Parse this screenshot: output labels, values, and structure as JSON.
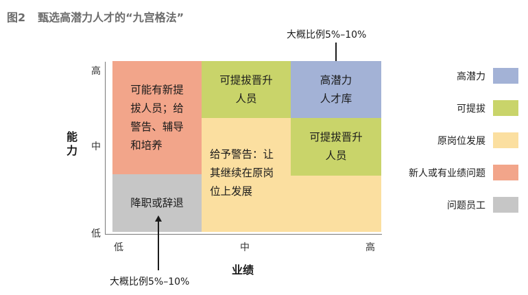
{
  "title": {
    "figure_no": "图2",
    "text": "甄选高潜力人才的“九宫格法”"
  },
  "axes": {
    "y_label": "能力",
    "x_label": "业绩",
    "y_ticks": [
      "高",
      "中",
      "低"
    ],
    "x_ticks": [
      "低",
      "中",
      "高"
    ]
  },
  "cells": {
    "left_top": "可能有新提\n拔人员；给\n警告、辅导\n和培养",
    "left_bottom": "降职或辞退",
    "mid_top": "可提拔晋升\n人员",
    "mid_rest": "给予警告：让\n其继续在原岗\n位上发展",
    "right_top": "高潜力\n人才库",
    "right_mid": "可提拔晋升\n人员"
  },
  "annotations": {
    "top": "大概比例5%–10%",
    "bottom": "大概比例5%–10%"
  },
  "legend": [
    {
      "label": "高潜力",
      "color": "#a3b2d6"
    },
    {
      "label": "可提拔",
      "color": "#c9d46a"
    },
    {
      "label": "原岗位发展",
      "color": "#fbdfa0"
    },
    {
      "label": "新人或有业绩问题",
      "color": "#f2a58a"
    },
    {
      "label": "问题员工",
      "color": "#c6c6c6"
    }
  ]
}
